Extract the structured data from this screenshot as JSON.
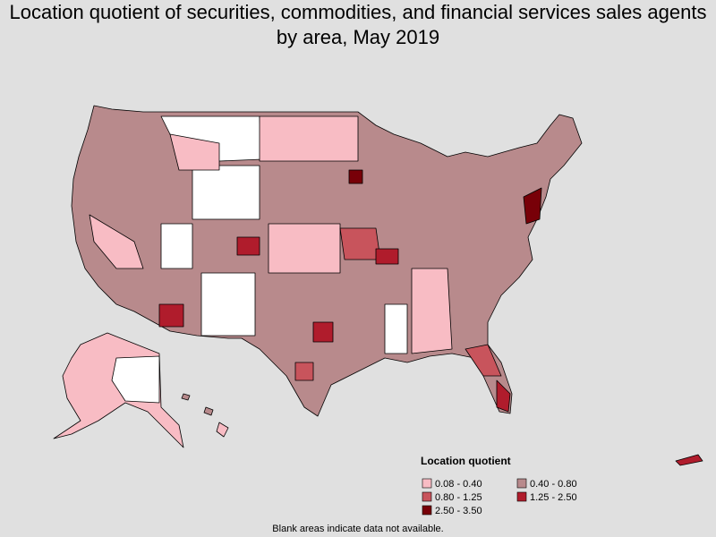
{
  "title": "Location quotient of securities, commodities, and financial services sales agents by area, May 2019",
  "legend": {
    "title": "Location quotient",
    "items": [
      {
        "label": "0.08 - 0.40",
        "color": "#f8bcc4"
      },
      {
        "label": "0.40 - 0.80",
        "color": "#b88a8c"
      },
      {
        "label": "0.80 - 1.25",
        "color": "#c8545c"
      },
      {
        "label": "1.25 - 2.50",
        "color": "#b01c2c"
      },
      {
        "label": "2.50 - 3.50",
        "color": "#780008"
      }
    ]
  },
  "footnote": "Blank areas indicate data not available."
}
